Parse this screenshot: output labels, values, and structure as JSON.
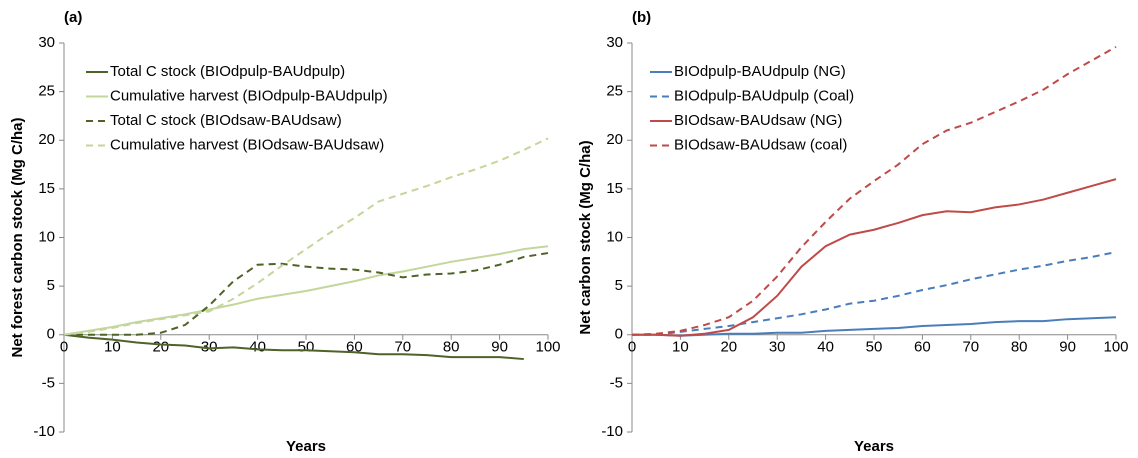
{
  "chart_data": [
    {
      "type": "line",
      "panel_label": "(a)",
      "xlabel": "Years",
      "ylabel": "Net forest carbon stock (Mg C/ha)",
      "x": [
        0,
        5,
        10,
        15,
        20,
        25,
        30,
        35,
        40,
        45,
        50,
        55,
        60,
        65,
        70,
        75,
        80,
        85,
        90,
        95,
        100
      ],
      "xlim": [
        0,
        100
      ],
      "xticks": [
        0,
        10,
        20,
        30,
        40,
        50,
        60,
        70,
        80,
        90,
        100
      ],
      "ylim": [
        -10,
        30
      ],
      "yticks": [
        -10,
        -5,
        0,
        5,
        10,
        15,
        20,
        25,
        30
      ],
      "series": [
        {
          "name": "Total C stock (BIOdpulp-BAUdpulp)",
          "color": "#4f6228",
          "dash": false,
          "values": [
            0,
            -0.3,
            -0.5,
            -0.8,
            -1.0,
            -1.1,
            -1.4,
            -1.3,
            -1.5,
            -1.6,
            -1.6,
            -1.7,
            -1.8,
            -2.0,
            -2.0,
            -2.1,
            -2.3,
            -2.3,
            -2.3,
            -2.5,
            null
          ]
        },
        {
          "name": "Cumulative harvest (BIOdpulp-BAUdpulp)",
          "color": "#c3d69b",
          "dash": false,
          "values": [
            0,
            0.4,
            0.8,
            1.3,
            1.7,
            2.1,
            2.6,
            3.1,
            3.7,
            4.1,
            4.5,
            5.0,
            5.5,
            6.1,
            6.5,
            7.0,
            7.5,
            7.9,
            8.3,
            8.8,
            9.1
          ]
        },
        {
          "name": "Total C stock (BIOdsaw-BAUdsaw)",
          "color": "#4f6228",
          "dash": true,
          "values": [
            0,
            0,
            0,
            0,
            0.2,
            1.0,
            3.0,
            5.5,
            7.2,
            7.3,
            7.0,
            6.8,
            6.7,
            6.4,
            5.9,
            6.2,
            6.3,
            6.6,
            7.2,
            8.0,
            8.4
          ]
        },
        {
          "name": "Cumulative harvest (BIOdsaw-BAUdsaw)",
          "color": "#c3d69b",
          "dash": true,
          "values": [
            0,
            0.3,
            0.7,
            1.2,
            1.6,
            2.0,
            2.4,
            3.7,
            5.3,
            7.1,
            8.8,
            10.5,
            12.0,
            13.7,
            14.5,
            15.3,
            16.2,
            17.0,
            17.9,
            19.0,
            20.2
          ]
        }
      ]
    },
    {
      "type": "line",
      "panel_label": "(b)",
      "xlabel": "Years",
      "ylabel": "Net carbon stock (Mg C/ha)",
      "x": [
        0,
        5,
        10,
        15,
        20,
        25,
        30,
        35,
        40,
        45,
        50,
        55,
        60,
        65,
        70,
        75,
        80,
        85,
        90,
        95,
        100
      ],
      "xlim": [
        0,
        100
      ],
      "xticks": [
        0,
        10,
        20,
        30,
        40,
        50,
        60,
        70,
        80,
        90,
        100
      ],
      "ylim": [
        -10,
        30
      ],
      "yticks": [
        -10,
        -5,
        0,
        5,
        10,
        15,
        20,
        25,
        30
      ],
      "series": [
        {
          "name": "BIOdpulp-BAUdpulp (NG)",
          "color": "#4a7ebb",
          "dash": false,
          "values": [
            0,
            0,
            -0.1,
            0,
            0.1,
            0.1,
            0.2,
            0.2,
            0.4,
            0.5,
            0.6,
            0.7,
            0.9,
            1.0,
            1.1,
            1.3,
            1.4,
            1.4,
            1.6,
            1.7,
            1.8
          ]
        },
        {
          "name": "BIOdpulp-BAUdpulp (Coal)",
          "color": "#4a7ebb",
          "dash": true,
          "values": [
            0,
            0,
            0.3,
            0.6,
            0.9,
            1.3,
            1.7,
            2.1,
            2.6,
            3.2,
            3.5,
            4.0,
            4.6,
            5.1,
            5.7,
            6.2,
            6.7,
            7.1,
            7.6,
            8.0,
            8.5
          ]
        },
        {
          "name": "BIOdsaw-BAUdsaw (NG)",
          "color": "#be4b48",
          "dash": false,
          "values": [
            0,
            0,
            -0.1,
            0.1,
            0.5,
            1.8,
            4.0,
            7.0,
            9.1,
            10.3,
            10.8,
            11.5,
            12.3,
            12.7,
            12.6,
            13.1,
            13.4,
            13.9,
            14.6,
            15.3,
            16.0
          ]
        },
        {
          "name": "BIOdsaw-BAUdsaw (coal)",
          "color": "#be4b48",
          "dash": true,
          "values": [
            0,
            0.1,
            0.4,
            1.0,
            1.8,
            3.5,
            6.0,
            9.0,
            11.6,
            14.0,
            15.8,
            17.5,
            19.6,
            21.0,
            21.8,
            22.9,
            24.0,
            25.2,
            26.8,
            28.2,
            29.6
          ]
        }
      ]
    }
  ]
}
